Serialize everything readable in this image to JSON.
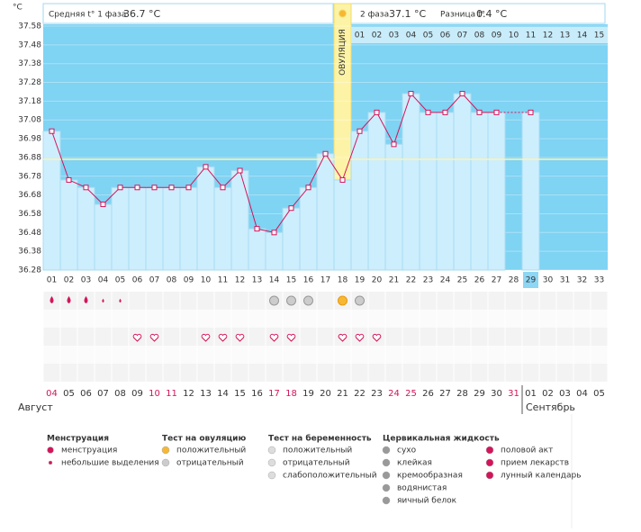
{
  "chart_data": {
    "type": "line",
    "unit": "°C",
    "phase1_label": "Средняя t° 1 фаза",
    "phase1_value": "36.7 °C",
    "phase2_label": "2 фаза",
    "phase2_value": "37.1 °C",
    "diff_label": "Разница t°",
    "diff_value": "0.4 °C",
    "ovulation_label": "ОВУЛЯЦИЯ",
    "ovulation_day": 18,
    "current_day": 29,
    "categories": [
      "01",
      "02",
      "03",
      "04",
      "05",
      "06",
      "07",
      "08",
      "09",
      "10",
      "11",
      "12",
      "13",
      "14",
      "15",
      "16",
      "17",
      "18",
      "19",
      "20",
      "21",
      "22",
      "23",
      "24",
      "25",
      "26",
      "27",
      "28",
      "29",
      "30",
      "31",
      "32",
      "33"
    ],
    "phase2_days": [
      "01",
      "02",
      "03",
      "04",
      "05",
      "06",
      "07",
      "08",
      "09",
      "10",
      "11",
      "12",
      "13",
      "14",
      "15"
    ],
    "values": [
      37.02,
      36.76,
      36.72,
      36.63,
      36.72,
      36.72,
      36.72,
      36.72,
      36.72,
      36.83,
      36.72,
      36.81,
      36.5,
      36.48,
      36.61,
      36.72,
      36.9,
      36.76,
      37.02,
      37.12,
      36.95,
      37.22,
      37.12,
      37.12,
      37.22,
      37.12,
      37.12,
      null,
      37.12,
      null,
      null,
      null,
      null
    ],
    "coverline": 36.87,
    "color": "#d4145a",
    "bar_color": "#cdeefd",
    "background": "#7fd3f3",
    "ylim": [
      36.28,
      37.58
    ],
    "yticks": [
      37.58,
      37.48,
      37.38,
      37.28,
      37.18,
      37.08,
      36.98,
      36.88,
      36.78,
      36.68,
      36.58,
      36.48,
      36.38,
      36.28
    ],
    "dates": [
      "04",
      "05",
      "06",
      "07",
      "08",
      "09",
      "10",
      "11",
      "12",
      "13",
      "14",
      "15",
      "16",
      "17",
      "18",
      "19",
      "20",
      "21",
      "22",
      "23",
      "24",
      "25",
      "26",
      "27",
      "28",
      "29",
      "30",
      "31",
      "01",
      "02",
      "03",
      "04",
      "05"
    ],
    "weekend": [
      true,
      false,
      false,
      false,
      false,
      false,
      true,
      true,
      false,
      false,
      false,
      false,
      false,
      true,
      true,
      false,
      false,
      false,
      false,
      false,
      true,
      true,
      false,
      false,
      false,
      false,
      false,
      true,
      false,
      false,
      false,
      false,
      false
    ],
    "months": [
      "Август",
      "Сентябрь"
    ],
    "month_start": 28,
    "menstruation_days": [
      1,
      2,
      3
    ],
    "spotting_days": [
      4,
      5
    ],
    "ovulation_test_negative": [
      14,
      15,
      16,
      19
    ],
    "ovulation_test_positive": [
      18
    ],
    "intercourse_days": [
      6,
      7,
      10,
      11,
      12,
      14,
      15,
      18,
      19,
      20
    ]
  },
  "legend": [
    {
      "title": "Менструация",
      "items": [
        "менструация",
        "небольшие выделения"
      ]
    },
    {
      "title": "Тест на овуляцию",
      "items": [
        "положительный",
        "отрицательный"
      ]
    },
    {
      "title": "Тест на беременность",
      "items": [
        "положительный",
        "отрицательный",
        "слабоположительный"
      ]
    },
    {
      "title": "Цервикальная жидкость",
      "items": [
        "сухо",
        "клейкая",
        "кремообразная",
        "водянистая",
        "яичный белок"
      ]
    },
    {
      "items": [
        "половой акт",
        "прием лекарств",
        "лунный календарь"
      ]
    }
  ]
}
